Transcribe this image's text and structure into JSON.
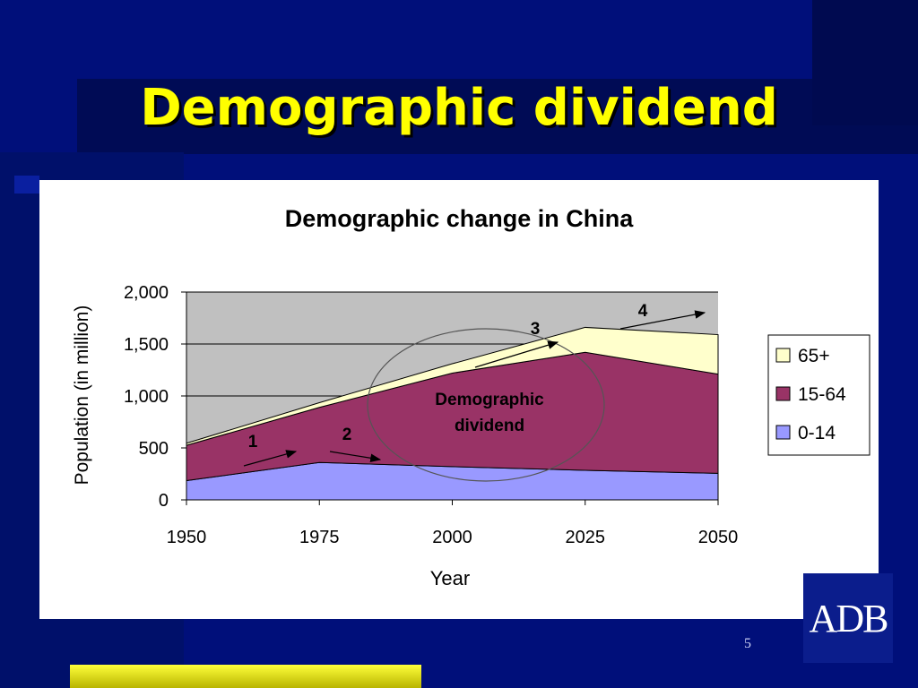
{
  "slide": {
    "title": "Demographic dividend",
    "page_number": "5",
    "logo_text": "ADB",
    "colors": {
      "background": "#000f7a",
      "title": "#ffff00",
      "accent_bar": "#e6e600"
    }
  },
  "chart_data": {
    "type": "area",
    "stacked": true,
    "title": "Demographic change in China",
    "xlabel": "Year",
    "ylabel": "Population (in million)",
    "x": [
      1950,
      1975,
      2000,
      2025,
      2050
    ],
    "xticks": [
      "1950",
      "1975",
      "2000",
      "2025",
      "2050"
    ],
    "yticks": [
      "0",
      "500",
      "1,000",
      "1,500",
      "2,000"
    ],
    "ylim": [
      0,
      2000
    ],
    "grid": true,
    "legend_position": "right",
    "series": [
      {
        "name": "0-14",
        "color": "#9999ff",
        "values": [
          185,
          360,
          320,
          285,
          255
        ]
      },
      {
        "name": "15-64",
        "color": "#993366",
        "values": [
          340,
          530,
          900,
          1135,
          955
        ]
      },
      {
        "name": "65+",
        "color": "#ffffcc",
        "values": [
          20,
          45,
          90,
          240,
          380
        ]
      }
    ],
    "annotations": {
      "ellipse_label_line1": "Demographic",
      "ellipse_label_line2": "dividend",
      "marker_1": "1",
      "marker_2": "2",
      "marker_3": "3",
      "marker_4": "4"
    }
  }
}
